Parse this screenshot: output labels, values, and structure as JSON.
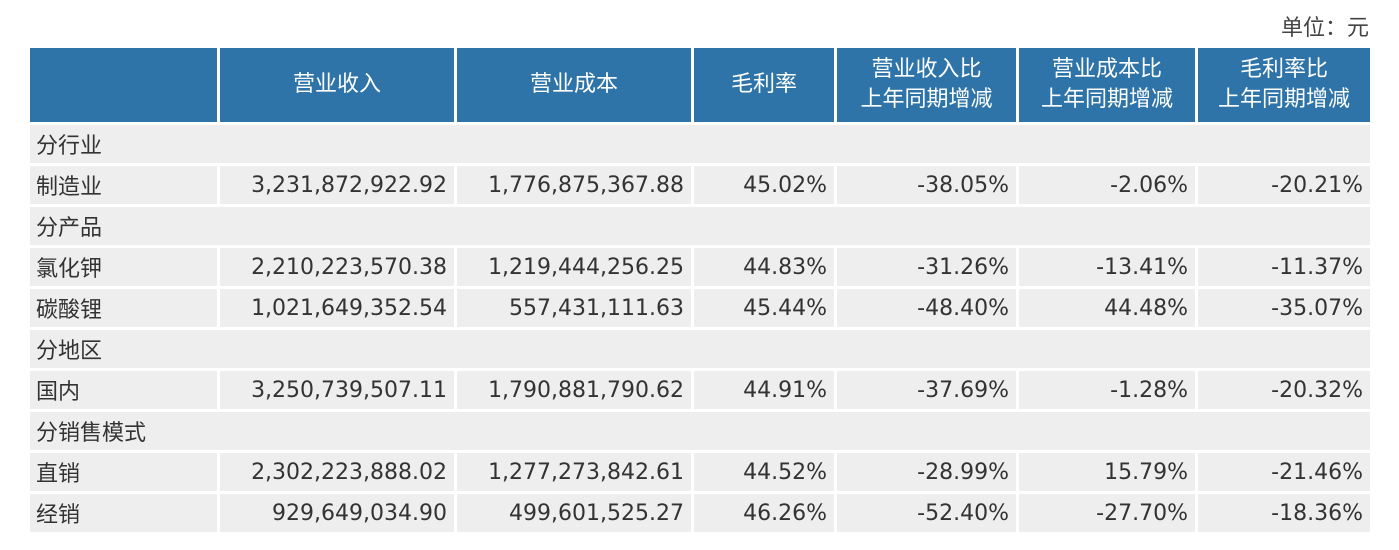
{
  "unit_label": "单位：元",
  "headers": {
    "blank": "",
    "revenue": "营业收入",
    "cost": "营业成本",
    "margin": "毛利率",
    "revenue_yoy": [
      "营业收入比",
      "上年同期增减"
    ],
    "cost_yoy": [
      "营业成本比",
      "上年同期增减"
    ],
    "margin_yoy": [
      "毛利率比",
      "上年同期增减"
    ]
  },
  "rows": [
    {
      "type": "section",
      "label": "分行业"
    },
    {
      "type": "data",
      "label": "制造业",
      "values": [
        "3,231,872,922.92",
        "1,776,875,367.88",
        "45.02%",
        "-38.05%",
        "-2.06%",
        "-20.21%"
      ]
    },
    {
      "type": "section",
      "label": "分产品"
    },
    {
      "type": "data",
      "label": "氯化钾",
      "values": [
        "2,210,223,570.38",
        "1,219,444,256.25",
        "44.83%",
        "-31.26%",
        "-13.41%",
        "-11.37%"
      ]
    },
    {
      "type": "data",
      "label": "碳酸锂",
      "values": [
        "1,021,649,352.54",
        "557,431,111.63",
        "45.44%",
        "-48.40%",
        "44.48%",
        "-35.07%"
      ]
    },
    {
      "type": "section",
      "label": "分地区"
    },
    {
      "type": "data",
      "label": "国内",
      "values": [
        "3,250,739,507.11",
        "1,790,881,790.62",
        "44.91%",
        "-37.69%",
        "-1.28%",
        "-20.32%"
      ]
    },
    {
      "type": "section",
      "label": "分销售模式"
    },
    {
      "type": "data",
      "label": "直销",
      "values": [
        "2,302,223,888.02",
        "1,277,273,842.61",
        "44.52%",
        "-28.99%",
        "15.79%",
        "-21.46%"
      ]
    },
    {
      "type": "data",
      "label": "经销",
      "values": [
        "929,649,034.90",
        "499,601,525.27",
        "46.26%",
        "-52.40%",
        "-27.70%",
        "-18.36%"
      ]
    }
  ]
}
